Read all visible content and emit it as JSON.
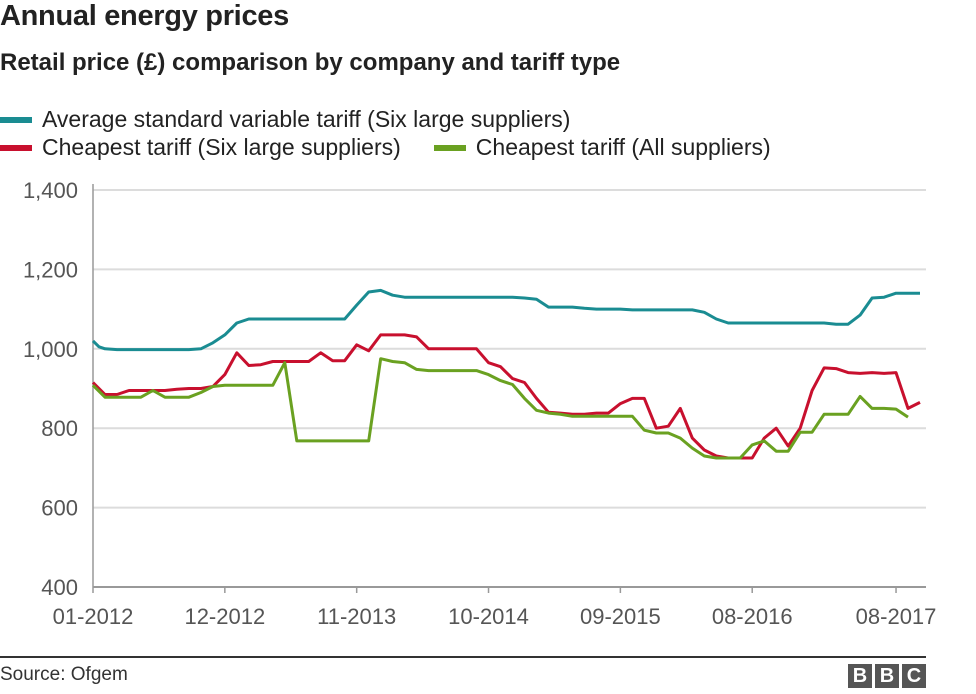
{
  "chart_data": {
    "type": "line",
    "title": "Annual energy prices",
    "subtitle": "Retail price (£) comparison by company and tariff type",
    "x_tick_labels": [
      "01-2012",
      "12-2012",
      "11-2013",
      "10-2014",
      "09-2015",
      "08-2016",
      "08-2017"
    ],
    "x_tick_months": [
      0,
      11,
      22,
      33,
      44,
      55,
      67
    ],
    "ylim": [
      400,
      1400
    ],
    "y_ticks": [
      400,
      600,
      800,
      1000,
      1200,
      1400
    ],
    "y_tick_labels": [
      "400",
      "600",
      "800",
      "1,000",
      "1,200",
      "1,400"
    ],
    "grid": true,
    "legend_position": "top-left",
    "series": [
      {
        "name": "Average standard variable tariff (Six large suppliers)",
        "color": "#1a8c92",
        "points": [
          [
            0,
            1020
          ],
          [
            0.5,
            1005
          ],
          [
            1,
            1000
          ],
          [
            2,
            998
          ],
          [
            3,
            998
          ],
          [
            4,
            998
          ],
          [
            5,
            998
          ],
          [
            6,
            998
          ],
          [
            7,
            998
          ],
          [
            8,
            998
          ],
          [
            9,
            1000
          ],
          [
            10,
            1015
          ],
          [
            11,
            1035
          ],
          [
            12,
            1065
          ],
          [
            13,
            1075
          ],
          [
            14,
            1075
          ],
          [
            15,
            1075
          ],
          [
            16,
            1075
          ],
          [
            17,
            1075
          ],
          [
            18,
            1075
          ],
          [
            19,
            1075
          ],
          [
            20,
            1075
          ],
          [
            21,
            1075
          ],
          [
            22,
            1110
          ],
          [
            23,
            1143
          ],
          [
            24,
            1147
          ],
          [
            25,
            1135
          ],
          [
            26,
            1130
          ],
          [
            27,
            1130
          ],
          [
            28,
            1130
          ],
          [
            29,
            1130
          ],
          [
            30,
            1130
          ],
          [
            31,
            1130
          ],
          [
            32,
            1130
          ],
          [
            33,
            1130
          ],
          [
            34,
            1130
          ],
          [
            35,
            1130
          ],
          [
            36,
            1128
          ],
          [
            37,
            1125
          ],
          [
            38,
            1105
          ],
          [
            39,
            1105
          ],
          [
            40,
            1105
          ],
          [
            41,
            1102
          ],
          [
            42,
            1100
          ],
          [
            43,
            1100
          ],
          [
            44,
            1100
          ],
          [
            45,
            1098
          ],
          [
            46,
            1098
          ],
          [
            47,
            1098
          ],
          [
            48,
            1098
          ],
          [
            49,
            1098
          ],
          [
            50,
            1098
          ],
          [
            51,
            1092
          ],
          [
            52,
            1075
          ],
          [
            53,
            1065
          ],
          [
            54,
            1065
          ],
          [
            55,
            1065
          ],
          [
            56,
            1065
          ],
          [
            57,
            1065
          ],
          [
            58,
            1065
          ],
          [
            59,
            1065
          ],
          [
            60,
            1065
          ],
          [
            61,
            1065
          ],
          [
            62,
            1062
          ],
          [
            63,
            1062
          ],
          [
            64,
            1085
          ],
          [
            65,
            1128
          ],
          [
            66,
            1130
          ],
          [
            67,
            1140
          ],
          [
            68,
            1140
          ],
          [
            69,
            1140
          ]
        ]
      },
      {
        "name": "Cheapest tariff (Six large suppliers)",
        "color": "#c8102e",
        "points": [
          [
            0,
            915
          ],
          [
            1,
            885
          ],
          [
            2,
            885
          ],
          [
            3,
            895
          ],
          [
            4,
            895
          ],
          [
            5,
            895
          ],
          [
            6,
            895
          ],
          [
            7,
            898
          ],
          [
            8,
            900
          ],
          [
            9,
            900
          ],
          [
            10,
            905
          ],
          [
            11,
            935
          ],
          [
            12,
            990
          ],
          [
            13,
            958
          ],
          [
            14,
            960
          ],
          [
            15,
            968
          ],
          [
            16,
            968
          ],
          [
            17,
            968
          ],
          [
            18,
            968
          ],
          [
            19,
            990
          ],
          [
            20,
            970
          ],
          [
            21,
            970
          ],
          [
            22,
            1010
          ],
          [
            23,
            995
          ],
          [
            24,
            1035
          ],
          [
            25,
            1035
          ],
          [
            26,
            1035
          ],
          [
            27,
            1030
          ],
          [
            28,
            1000
          ],
          [
            29,
            1000
          ],
          [
            30,
            1000
          ],
          [
            31,
            1000
          ],
          [
            32,
            1000
          ],
          [
            33,
            965
          ],
          [
            34,
            955
          ],
          [
            35,
            925
          ],
          [
            36,
            915
          ],
          [
            37,
            875
          ],
          [
            38,
            840
          ],
          [
            39,
            838
          ],
          [
            40,
            835
          ],
          [
            41,
            835
          ],
          [
            42,
            838
          ],
          [
            43,
            838
          ],
          [
            44,
            862
          ],
          [
            45,
            875
          ],
          [
            46,
            875
          ],
          [
            47,
            800
          ],
          [
            48,
            805
          ],
          [
            49,
            850
          ],
          [
            50,
            775
          ],
          [
            51,
            745
          ],
          [
            52,
            730
          ],
          [
            53,
            725
          ],
          [
            54,
            725
          ],
          [
            55,
            725
          ],
          [
            56,
            775
          ],
          [
            57,
            800
          ],
          [
            58,
            755
          ],
          [
            59,
            800
          ],
          [
            60,
            895
          ],
          [
            61,
            952
          ],
          [
            62,
            950
          ],
          [
            63,
            940
          ],
          [
            64,
            938
          ],
          [
            65,
            940
          ],
          [
            66,
            938
          ],
          [
            67,
            940
          ],
          [
            68,
            850
          ],
          [
            69,
            865
          ]
        ]
      },
      {
        "name": "Cheapest tariff (All suppliers)",
        "color": "#6aa121",
        "points": [
          [
            0,
            908
          ],
          [
            1,
            878
          ],
          [
            2,
            878
          ],
          [
            3,
            878
          ],
          [
            4,
            878
          ],
          [
            5,
            895
          ],
          [
            6,
            878
          ],
          [
            7,
            878
          ],
          [
            8,
            878
          ],
          [
            9,
            890
          ],
          [
            10,
            905
          ],
          [
            11,
            908
          ],
          [
            12,
            908
          ],
          [
            13,
            908
          ],
          [
            14,
            908
          ],
          [
            15,
            908
          ],
          [
            16,
            965
          ],
          [
            17,
            768
          ],
          [
            18,
            768
          ],
          [
            19,
            768
          ],
          [
            20,
            768
          ],
          [
            21,
            768
          ],
          [
            22,
            768
          ],
          [
            23,
            768
          ],
          [
            24,
            975
          ],
          [
            25,
            968
          ],
          [
            26,
            965
          ],
          [
            27,
            948
          ],
          [
            28,
            945
          ],
          [
            29,
            945
          ],
          [
            30,
            945
          ],
          [
            31,
            945
          ],
          [
            32,
            945
          ],
          [
            33,
            935
          ],
          [
            34,
            920
          ],
          [
            35,
            910
          ],
          [
            36,
            875
          ],
          [
            37,
            845
          ],
          [
            38,
            838
          ],
          [
            39,
            835
          ],
          [
            40,
            830
          ],
          [
            41,
            830
          ],
          [
            42,
            830
          ],
          [
            43,
            830
          ],
          [
            44,
            830
          ],
          [
            45,
            830
          ],
          [
            46,
            795
          ],
          [
            47,
            788
          ],
          [
            48,
            788
          ],
          [
            49,
            775
          ],
          [
            50,
            750
          ],
          [
            51,
            730
          ],
          [
            52,
            725
          ],
          [
            53,
            725
          ],
          [
            54,
            725
          ],
          [
            55,
            758
          ],
          [
            56,
            768
          ],
          [
            57,
            742
          ],
          [
            58,
            742
          ],
          [
            59,
            790
          ],
          [
            60,
            790
          ],
          [
            61,
            835
          ],
          [
            62,
            835
          ],
          [
            63,
            835
          ],
          [
            64,
            880
          ],
          [
            65,
            850
          ],
          [
            66,
            850
          ],
          [
            67,
            848
          ],
          [
            68,
            828
          ]
        ]
      }
    ]
  },
  "footer": {
    "source": "Source: Ofgem",
    "logo_letters": [
      "B",
      "B",
      "C"
    ]
  }
}
